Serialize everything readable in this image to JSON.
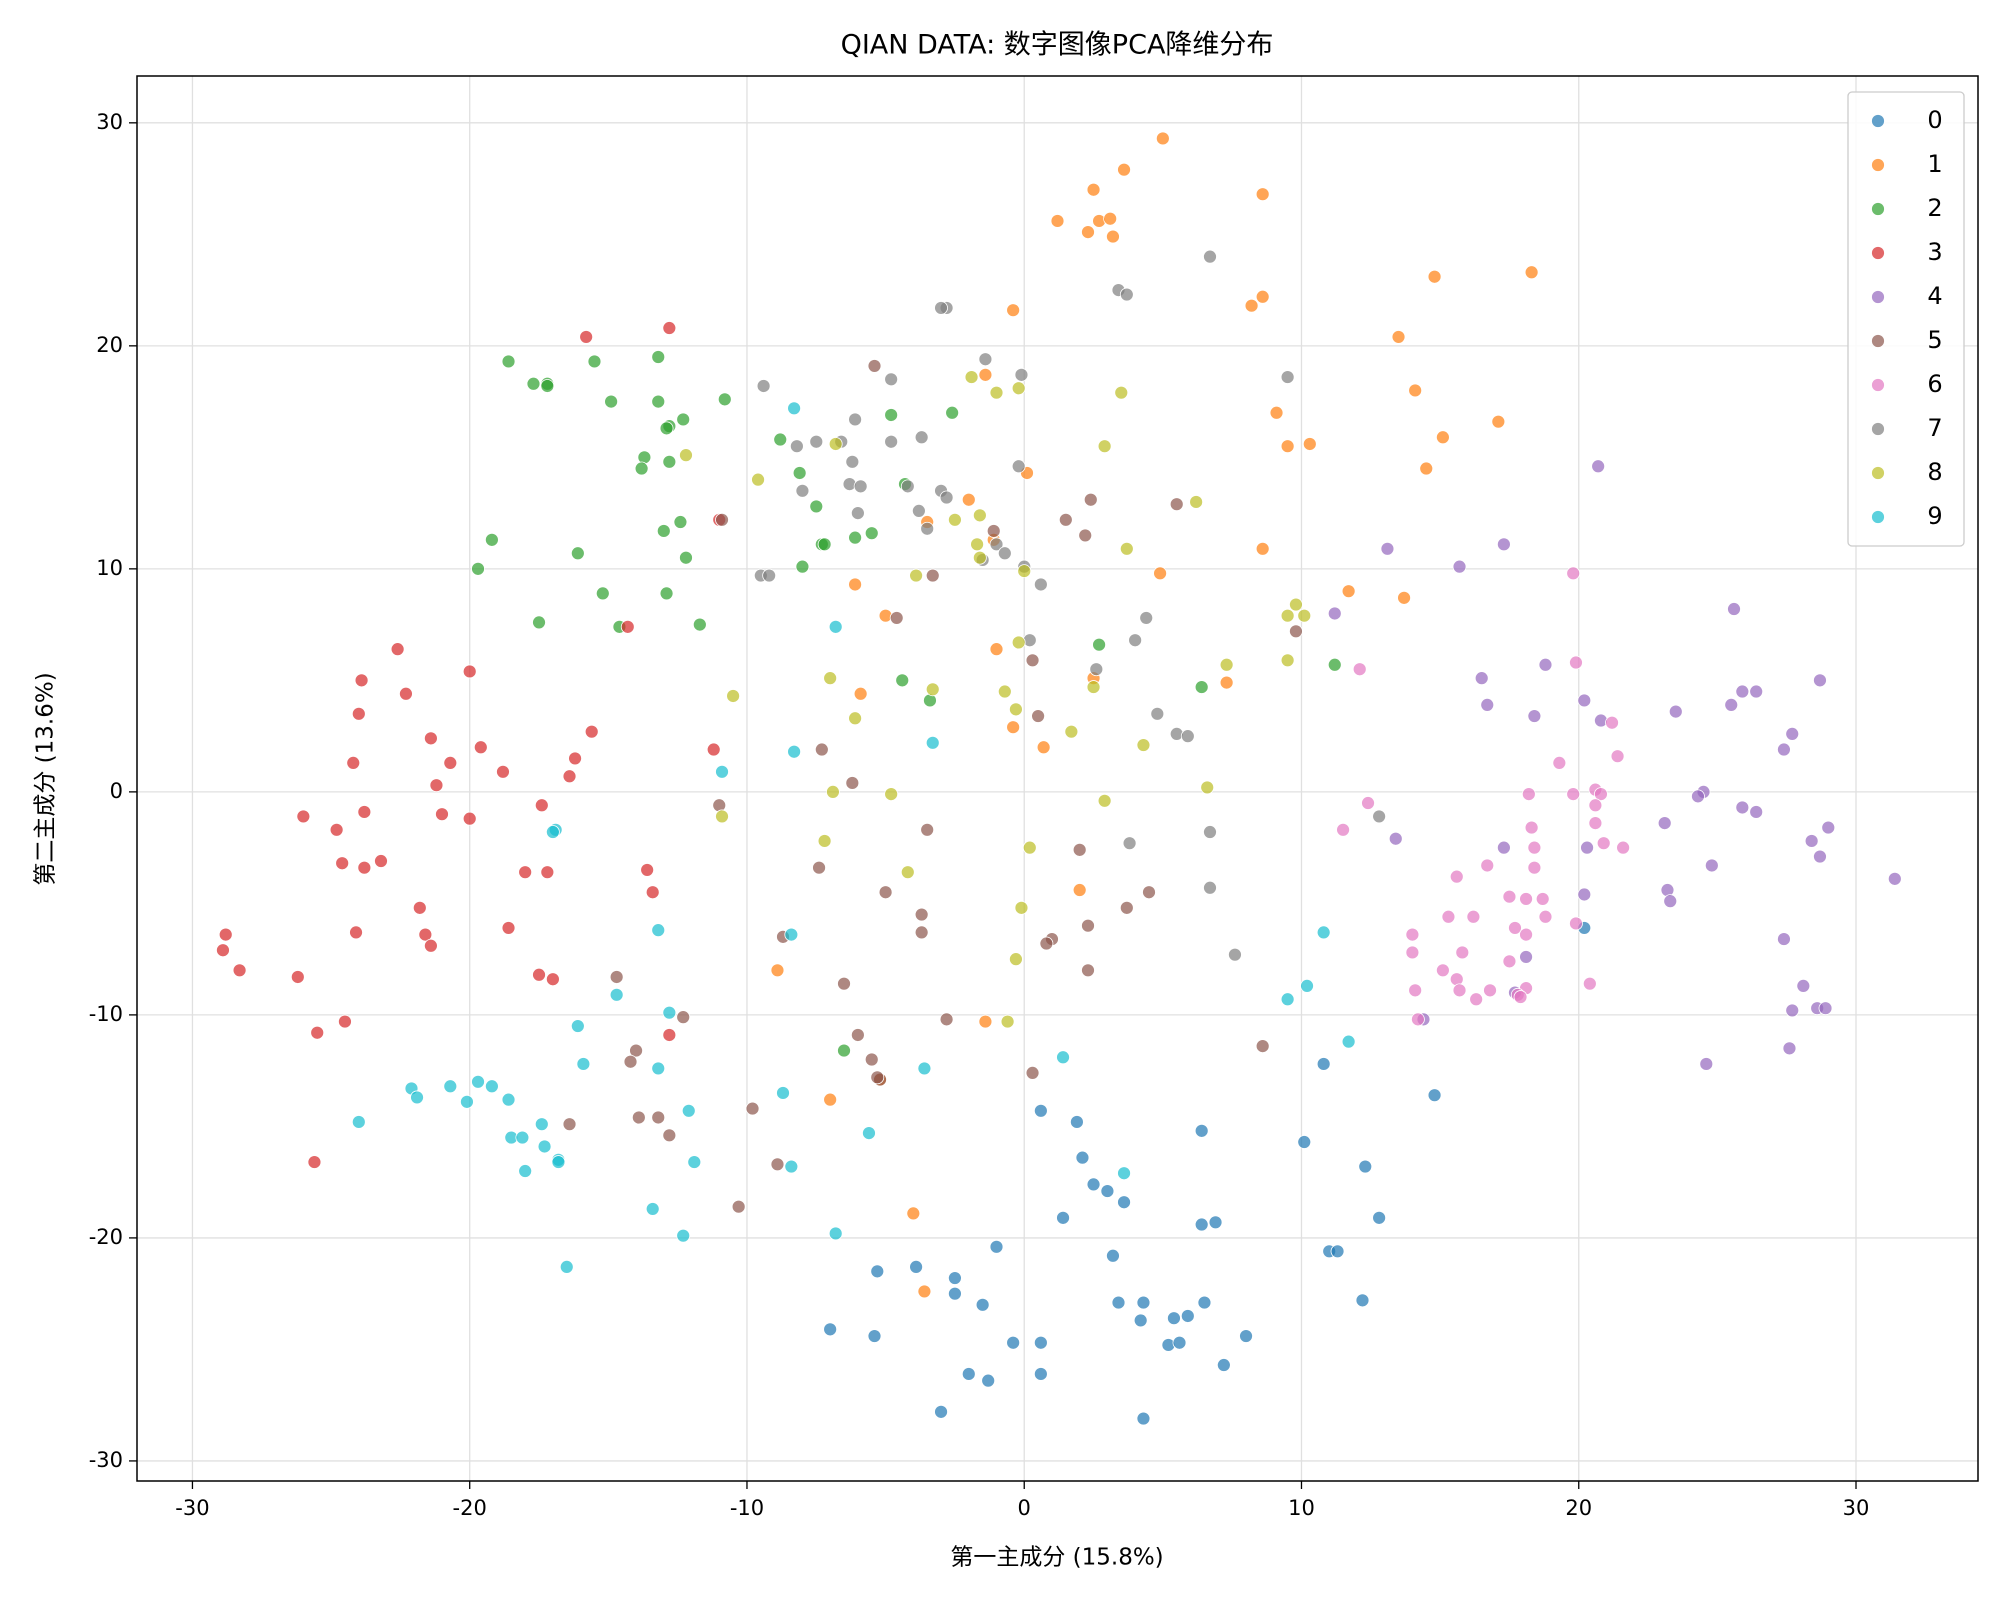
{
  "chart_data": {
    "type": "scatter",
    "title": "QIAN DATA: 数字图像PCA降维分布",
    "x_label": "第一主成分 (15.8%)",
    "y_label": "第二主成分 (13.6%)",
    "xlim": [
      -32.0,
      34.4
    ],
    "ylim": [
      -30.9,
      32.1
    ],
    "xticks": [
      -30,
      -20,
      -10,
      0,
      10,
      20,
      30
    ],
    "yticks": [
      -30,
      -20,
      -10,
      0,
      10,
      20,
      30
    ],
    "grid": true,
    "legend": "upper right",
    "series": [
      {
        "name": "0",
        "color": "#1f77b4",
        "x": [
          0.6,
          1.9,
          2.1,
          2.5,
          3.0,
          3.6,
          1.4,
          -1.0,
          3.2,
          -5.3,
          -3.9,
          -2.5,
          -2.5,
          -1.5,
          3.4,
          4.3,
          5.4,
          5.9,
          6.5,
          4.2,
          -7.0,
          -5.4,
          -0.4,
          0.6,
          5.2,
          5.6,
          8.0,
          7.2,
          -2.0,
          -1.3,
          0.6,
          -3.0,
          4.3,
          6.4,
          6.4,
          6.9,
          10.1,
          10.8,
          12.3,
          12.8,
          11.0,
          11.3,
          12.2,
          14.8,
          20.2
        ],
        "y": [
          -14.3,
          -14.8,
          -16.4,
          -17.6,
          -17.9,
          -18.4,
          -19.1,
          -20.4,
          -20.8,
          -21.5,
          -21.3,
          -21.8,
          -22.5,
          -23.0,
          -22.9,
          -22.9,
          -23.6,
          -23.5,
          -22.9,
          -23.7,
          -24.1,
          -24.4,
          -24.7,
          -24.7,
          -24.8,
          -24.7,
          -24.4,
          -25.7,
          -26.1,
          -26.4,
          -26.1,
          -27.8,
          -28.1,
          -15.2,
          -19.4,
          -19.3,
          -15.7,
          -12.2,
          -16.8,
          -19.1,
          -20.6,
          -20.6,
          -22.8,
          -13.6,
          -6.1
        ]
      },
      {
        "name": "1",
        "color": "#ff7f0e",
        "x": [
          5.0,
          3.6,
          2.5,
          8.6,
          1.2,
          2.7,
          3.1,
          2.3,
          3.2,
          14.8,
          18.3,
          8.6,
          8.2,
          -0.4,
          13.5,
          -1.4,
          14.1,
          17.1,
          9.1,
          15.1,
          10.3,
          9.5,
          14.5,
          0.1,
          -2.0,
          -3.5,
          -1.1,
          8.6,
          4.9,
          -6.1,
          11.7,
          13.7,
          -5.0,
          -1.0,
          2.5,
          7.3,
          -5.9,
          -0.4,
          0.7,
          2.0,
          -8.9,
          -1.4,
          -7.0,
          -5.2,
          -4.0,
          -3.6
        ],
        "y": [
          29.3,
          27.9,
          27.0,
          26.8,
          25.6,
          25.6,
          25.7,
          25.1,
          24.9,
          23.1,
          23.3,
          22.2,
          21.8,
          21.6,
          20.4,
          18.7,
          18.0,
          16.6,
          17.0,
          15.9,
          15.6,
          15.5,
          14.5,
          14.3,
          13.1,
          12.1,
          11.3,
          10.9,
          9.8,
          9.3,
          9.0,
          8.7,
          7.9,
          6.4,
          5.1,
          4.9,
          4.4,
          2.9,
          2.0,
          -4.4,
          -8.0,
          -10.3,
          -13.8,
          -12.9,
          -18.9,
          -22.4
        ]
      },
      {
        "name": "2",
        "color": "#2ca02c",
        "x": [
          -18.6,
          -17.7,
          -17.2,
          -17.2,
          -15.5,
          -13.2,
          -14.9,
          -13.2,
          -10.8,
          -12.8,
          -12.3,
          -12.9,
          -13.7,
          -13.8,
          -12.8,
          -2.6,
          -4.8,
          -8.8,
          -8.1,
          -7.5,
          -7.3,
          -7.2,
          -6.1,
          -5.5,
          -4.3,
          -12.4,
          -13.0,
          -12.2,
          -19.2,
          -16.1,
          -19.7,
          -8.0,
          -15.2,
          -12.9,
          -11.7,
          -17.5,
          -14.6,
          -4.4,
          -3.4,
          2.7,
          6.4,
          11.2,
          -6.5
        ],
        "y": [
          19.3,
          18.3,
          18.3,
          18.2,
          19.3,
          19.5,
          17.5,
          17.5,
          17.6,
          16.4,
          16.7,
          16.3,
          15.0,
          14.5,
          14.8,
          17.0,
          16.9,
          15.8,
          14.3,
          12.8,
          11.1,
          11.1,
          11.4,
          11.6,
          13.8,
          12.1,
          11.7,
          10.5,
          11.3,
          10.7,
          10.0,
          10.1,
          8.9,
          8.9,
          7.5,
          7.6,
          7.4,
          5.0,
          4.1,
          6.6,
          4.7,
          5.7,
          -11.6
        ]
      },
      {
        "name": "3",
        "color": "#d62728",
        "x": [
          -12.8,
          -15.8,
          -14.3,
          -22.6,
          -23.9,
          -20.0,
          -22.3,
          -24.0,
          -21.4,
          -19.6,
          -15.6,
          -11.2,
          -24.2,
          -20.7,
          -16.2,
          -18.8,
          -16.4,
          -21.2,
          -26.0,
          -23.8,
          -21.0,
          -20.0,
          -17.4,
          -24.8,
          -24.6,
          -23.2,
          -23.8,
          -18.0,
          -17.2,
          -13.6,
          -13.4,
          -21.8,
          -24.1,
          -21.6,
          -21.4,
          -18.6,
          -28.8,
          -28.9,
          -28.3,
          -26.2,
          -17.5,
          -17.0,
          -24.5,
          -25.5,
          -12.8,
          -25.6,
          -11.0
        ],
        "y": [
          20.8,
          20.4,
          7.4,
          6.4,
          5.0,
          5.4,
          4.4,
          3.5,
          2.4,
          2.0,
          2.7,
          1.9,
          1.3,
          1.3,
          1.5,
          0.9,
          0.7,
          0.3,
          -1.1,
          -0.9,
          -1.0,
          -1.2,
          -0.6,
          -1.7,
          -3.2,
          -3.1,
          -3.4,
          -3.6,
          -3.6,
          -3.5,
          -4.5,
          -5.2,
          -6.3,
          -6.4,
          -6.9,
          -6.1,
          -6.4,
          -7.1,
          -8.0,
          -8.3,
          -8.2,
          -8.4,
          -10.3,
          -10.8,
          -10.9,
          -16.6,
          12.2
        ]
      },
      {
        "name": "4",
        "color": "#9467bd",
        "x": [
          20.7,
          13.1,
          17.3,
          15.7,
          25.6,
          11.2,
          18.8,
          16.5,
          28.7,
          20.2,
          16.7,
          25.9,
          26.4,
          25.5,
          23.5,
          18.4,
          20.8,
          27.7,
          27.4,
          24.5,
          24.3,
          25.9,
          26.4,
          29.0,
          23.1,
          13.4,
          28.4,
          20.3,
          17.3,
          28.7,
          24.8,
          31.4,
          23.2,
          20.2,
          23.3,
          27.4,
          18.1,
          28.1,
          17.7,
          27.7,
          28.6,
          28.9,
          14.4,
          27.6,
          24.6
        ],
        "y": [
          14.6,
          10.9,
          11.1,
          10.1,
          8.2,
          8.0,
          5.7,
          5.1,
          5.0,
          4.1,
          3.9,
          4.5,
          4.5,
          3.9,
          3.6,
          3.4,
          3.2,
          2.6,
          1.9,
          0.0,
          -0.2,
          -0.7,
          -0.9,
          -1.6,
          -1.4,
          -2.1,
          -2.2,
          -2.5,
          -2.5,
          -2.9,
          -3.3,
          -3.9,
          -4.4,
          -4.6,
          -4.9,
          -6.6,
          -7.4,
          -8.7,
          -9.0,
          -9.8,
          -9.7,
          -9.7,
          -10.2,
          -11.5,
          -12.2
        ]
      },
      {
        "name": "5",
        "color": "#8c564b",
        "x": [
          -5.4,
          -10.9,
          1.5,
          -1.1,
          2.4,
          2.2,
          5.5,
          -3.3,
          -4.6,
          0.3,
          9.8,
          0.5,
          -7.3,
          -6.2,
          -11.0,
          -3.5,
          -7.4,
          2.0,
          -5.0,
          4.5,
          -3.7,
          3.7,
          -3.7,
          2.3,
          -8.7,
          1.0,
          0.8,
          2.3,
          -6.5,
          -14.7,
          -2.8,
          -12.3,
          -6.0,
          8.6,
          -14.0,
          -14.2,
          -5.5,
          0.3,
          -5.2,
          -5.3,
          -9.8,
          -13.9,
          -13.2,
          -16.4,
          -12.8,
          -8.9,
          -10.3
        ],
        "y": [
          19.1,
          12.2,
          12.2,
          11.7,
          13.1,
          11.5,
          12.9,
          9.7,
          7.8,
          5.9,
          7.2,
          3.4,
          1.9,
          0.4,
          -0.6,
          -1.7,
          -3.4,
          -2.6,
          -4.5,
          -4.5,
          -5.5,
          -5.2,
          -6.3,
          -6.0,
          -6.5,
          -6.6,
          -6.8,
          -8.0,
          -8.6,
          -8.3,
          -10.2,
          -10.1,
          -10.9,
          -11.4,
          -11.6,
          -12.1,
          -12.0,
          -12.6,
          -12.9,
          -12.8,
          -14.2,
          -14.6,
          -14.6,
          -14.9,
          -15.4,
          -16.7,
          -18.6
        ]
      },
      {
        "name": "6",
        "color": "#e377c2",
        "x": [
          19.8,
          19.9,
          12.1,
          21.2,
          21.4,
          19.3,
          20.6,
          18.2,
          19.8,
          20.8,
          12.4,
          20.6,
          20.6,
          18.3,
          11.5,
          20.9,
          21.6,
          18.4,
          16.7,
          18.4,
          15.6,
          17.5,
          18.1,
          18.7,
          15.3,
          16.2,
          18.8,
          19.9,
          14.0,
          17.7,
          18.1,
          14.0,
          15.8,
          17.5,
          15.1,
          15.6,
          20.4,
          15.7,
          14.1,
          16.8,
          18.1,
          16.3,
          17.8,
          17.9,
          14.2
        ],
        "y": [
          9.8,
          5.8,
          5.5,
          3.1,
          1.6,
          1.3,
          0.1,
          -0.1,
          -0.1,
          -0.1,
          -0.5,
          -0.6,
          -1.4,
          -1.6,
          -1.7,
          -2.3,
          -2.5,
          -2.5,
          -3.3,
          -3.4,
          -3.8,
          -4.7,
          -4.8,
          -4.8,
          -5.6,
          -5.6,
          -5.6,
          -5.9,
          -6.4,
          -6.1,
          -6.4,
          -7.2,
          -7.2,
          -7.6,
          -8.0,
          -8.4,
          -8.6,
          -8.9,
          -8.9,
          -8.9,
          -8.8,
          -9.3,
          -9.1,
          -9.2,
          -10.2
        ]
      },
      {
        "name": "7",
        "color": "#7f7f7f",
        "x": [
          6.7,
          3.4,
          3.7,
          -2.8,
          -3.0,
          -1.4,
          -0.1,
          9.5,
          -4.8,
          -9.4,
          -6.1,
          -3.7,
          -8.2,
          -7.5,
          -6.6,
          -4.8,
          -6.2,
          -0.2,
          -6.3,
          -5.9,
          -4.2,
          -8.0,
          -3.0,
          -2.8,
          -3.8,
          -6.0,
          -3.5,
          -1.0,
          -0.7,
          -1.5,
          0.0,
          -9.5,
          -9.2,
          0.6,
          4.4,
          0.2,
          4.0,
          2.6,
          4.8,
          5.5,
          5.9,
          12.8,
          6.7,
          3.8,
          6.7,
          7.6
        ],
        "y": [
          24.0,
          22.5,
          22.3,
          21.7,
          21.7,
          19.4,
          18.7,
          18.6,
          18.5,
          18.2,
          16.7,
          15.9,
          15.5,
          15.7,
          15.7,
          15.7,
          14.8,
          14.6,
          13.8,
          13.7,
          13.7,
          13.5,
          13.5,
          13.2,
          12.6,
          12.5,
          11.8,
          11.1,
          10.7,
          10.4,
          10.1,
          9.7,
          9.7,
          9.3,
          7.8,
          6.8,
          6.8,
          5.5,
          3.5,
          2.6,
          2.5,
          -1.1,
          -1.8,
          -2.3,
          -4.3,
          -7.3
        ]
      },
      {
        "name": "8",
        "color": "#bcbd22",
        "x": [
          -1.9,
          -0.2,
          -1.0,
          3.5,
          -12.2,
          -6.8,
          2.9,
          -9.6,
          6.2,
          -1.6,
          -2.5,
          -1.7,
          -1.6,
          3.7,
          -3.9,
          0.0,
          9.8,
          9.5,
          10.1,
          -0.2,
          7.3,
          -7.0,
          9.5,
          -10.5,
          -3.3,
          -0.7,
          2.5,
          -0.3,
          -6.1,
          1.7,
          4.3,
          6.6,
          -6.9,
          -4.8,
          2.9,
          -10.9,
          -7.2,
          0.2,
          -4.2,
          -0.1,
          -0.3,
          -0.6
        ],
        "y": [
          18.6,
          18.1,
          17.9,
          17.9,
          15.1,
          15.6,
          15.5,
          14.0,
          13.0,
          12.4,
          12.2,
          11.1,
          10.5,
          10.9,
          9.7,
          9.9,
          8.4,
          7.9,
          7.9,
          6.7,
          5.7,
          5.1,
          5.9,
          4.3,
          4.6,
          4.5,
          4.7,
          3.7,
          3.3,
          2.7,
          2.1,
          0.2,
          0.0,
          -0.1,
          -0.4,
          -1.1,
          -2.2,
          -2.5,
          -3.6,
          -5.2,
          -7.5,
          -10.3
        ]
      },
      {
        "name": "9",
        "color": "#17becf",
        "x": [
          -8.3,
          -6.8,
          -3.3,
          -8.3,
          -10.9,
          -16.9,
          -17.0,
          -8.4,
          -13.2,
          10.8,
          10.2,
          9.5,
          -14.7,
          -12.8,
          -16.1,
          11.7,
          -15.9,
          -13.2,
          -3.6,
          1.4,
          -19.7,
          -19.2,
          -22.1,
          -20.7,
          -21.9,
          -20.1,
          -18.6,
          -8.7,
          -12.1,
          -24.0,
          -17.4,
          -18.5,
          -18.1,
          -5.6,
          -17.3,
          -16.8,
          -16.8,
          -11.9,
          -8.4,
          -18.0,
          3.6,
          -13.4,
          -12.3,
          -6.8,
          -16.5
        ],
        "y": [
          17.2,
          7.4,
          2.2,
          1.8,
          0.9,
          -1.7,
          -1.8,
          -6.4,
          -6.2,
          -6.3,
          -8.7,
          -9.3,
          -9.1,
          -9.9,
          -10.5,
          -11.2,
          -12.2,
          -12.4,
          -12.4,
          -11.9,
          -13.0,
          -13.2,
          -13.3,
          -13.2,
          -13.7,
          -13.9,
          -13.8,
          -13.5,
          -14.3,
          -14.8,
          -14.9,
          -15.5,
          -15.5,
          -15.3,
          -15.9,
          -16.5,
          -16.6,
          -16.6,
          -16.8,
          -17.0,
          -17.1,
          -18.7,
          -19.9,
          -19.8,
          -21.3
        ]
      }
    ]
  }
}
